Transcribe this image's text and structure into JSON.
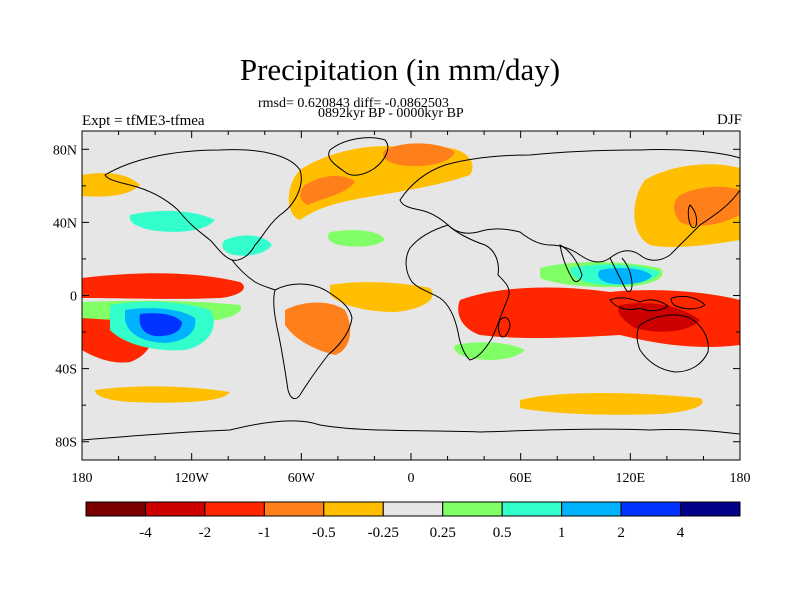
{
  "figure": {
    "title": "Precipitation (in mm/day)",
    "stats": "rmsd= 0.620843 diff= -0.0862503",
    "period": "0892kyr BP - 0000kyr BP",
    "experiment": "Expt = tfME3-tfmea",
    "season": "DJF"
  },
  "map": {
    "projection": "cylindrical-equidistant",
    "background_color": "#e6e6e6",
    "coastline_color": "#000000",
    "lon_ticks": [
      {
        "value": -180,
        "label": "180"
      },
      {
        "value": -120,
        "label": "120W"
      },
      {
        "value": -60,
        "label": "60W"
      },
      {
        "value": 0,
        "label": "0"
      },
      {
        "value": 60,
        "label": "60E"
      },
      {
        "value": 120,
        "label": "120E"
      },
      {
        "value": 180,
        "label": "180"
      }
    ],
    "lat_ticks": [
      {
        "value": 80,
        "label": "80N"
      },
      {
        "value": 40,
        "label": "40N"
      },
      {
        "value": 0,
        "label": "0"
      },
      {
        "value": -40,
        "label": "40S"
      },
      {
        "value": -80,
        "label": "80S"
      }
    ]
  },
  "colorbar": {
    "levels": [
      "-4",
      "-2",
      "-1",
      "-0.5",
      "-0.25",
      "0.25",
      "0.5",
      "1",
      "2",
      "4"
    ],
    "colors": [
      "#7a0000",
      "#cc0000",
      "#ff2600",
      "#ff7f1a",
      "#ffbf00",
      "#e6e6e6",
      "#80ff66",
      "#33ffcc",
      "#00b3ff",
      "#0033ff",
      "#00008b"
    ]
  }
}
